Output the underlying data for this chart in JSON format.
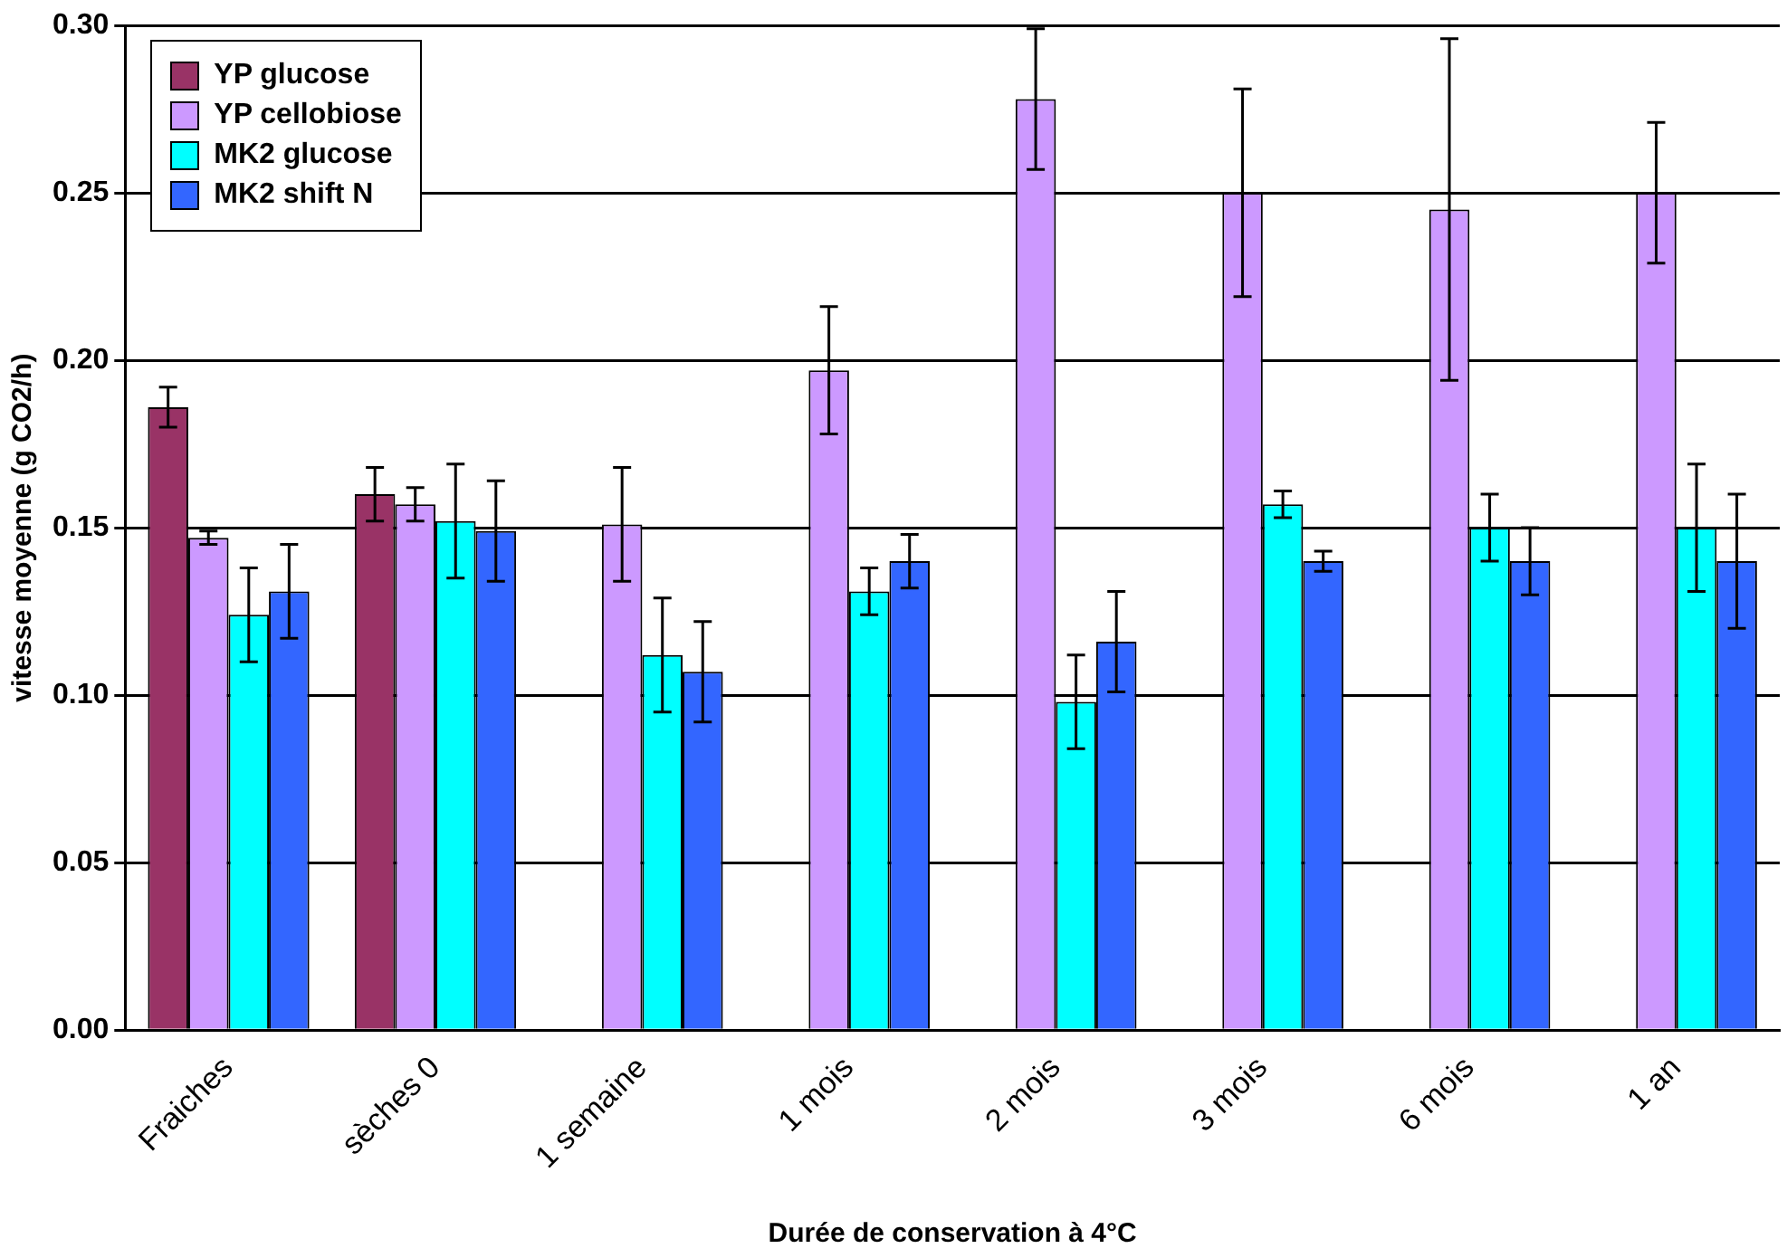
{
  "chart_data": {
    "type": "bar",
    "xlabel": "Durée de conservation à 4°C",
    "ylabel": "vitesse moyenne (g CO2/h)",
    "categories": [
      "Fraiches",
      "sèches 0",
      "1 semaine",
      "1 mois",
      "2 mois",
      "3 mois",
      "6 mois",
      "1 an"
    ],
    "series": [
      {
        "name": "YP glucose",
        "color": "#993366",
        "values": [
          0.186,
          0.16,
          null,
          null,
          null,
          null,
          null,
          null
        ],
        "errors": [
          0.006,
          0.008,
          null,
          null,
          null,
          null,
          null,
          null
        ]
      },
      {
        "name": "YP cellobiose",
        "color": "#cc99ff",
        "values": [
          0.147,
          0.157,
          0.151,
          0.197,
          0.278,
          0.25,
          0.245,
          0.25
        ],
        "errors": [
          0.002,
          0.005,
          0.017,
          0.019,
          0.021,
          0.031,
          0.051,
          0.021
        ]
      },
      {
        "name": "MK2 glucose",
        "color": "#00ffff",
        "values": [
          0.124,
          0.152,
          0.112,
          0.131,
          0.098,
          0.157,
          0.15,
          0.15
        ],
        "errors": [
          0.014,
          0.017,
          0.017,
          0.007,
          0.014,
          0.004,
          0.01,
          0.019
        ]
      },
      {
        "name": "MK2 shift N",
        "color": "#3366ff",
        "values": [
          0.131,
          0.149,
          0.107,
          0.14,
          0.116,
          0.14,
          0.14,
          0.14
        ],
        "errors": [
          0.014,
          0.015,
          0.015,
          0.008,
          0.015,
          0.003,
          0.01,
          0.02
        ]
      }
    ],
    "ylim": [
      0,
      0.3
    ],
    "yticks": [
      {
        "value": 0,
        "label": "0.00"
      },
      {
        "value": 0.05,
        "label": "0.05"
      },
      {
        "value": 0.1,
        "label": "0.10"
      },
      {
        "value": 0.15,
        "label": "0.15"
      },
      {
        "value": 0.2,
        "label": "0.20"
      },
      {
        "value": 0.25,
        "label": "0.25"
      },
      {
        "value": 0.3,
        "label": "0.30"
      }
    ],
    "grid": "y",
    "legend": "top left"
  }
}
